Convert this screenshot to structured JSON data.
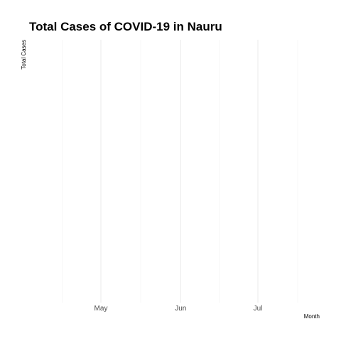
{
  "chart_data": {
    "type": "line",
    "title": "Total Cases of COVID-19 in Nauru",
    "xlabel": "Month",
    "ylabel": "Total Cases",
    "x_ticks": [
      "May",
      "Jun",
      "Jul"
    ],
    "x_tick_dates": [
      "2020-05-01",
      "2020-06-01",
      "2020-07-01"
    ],
    "xlim": [
      "2020-04-01",
      "2020-08-01"
    ],
    "series": [],
    "grid": true,
    "legend": "none",
    "colors": {
      "major_grid": "#ebebeb",
      "minor_grid": "#f5f5f5",
      "tick_label": "#4d4d4d"
    }
  }
}
